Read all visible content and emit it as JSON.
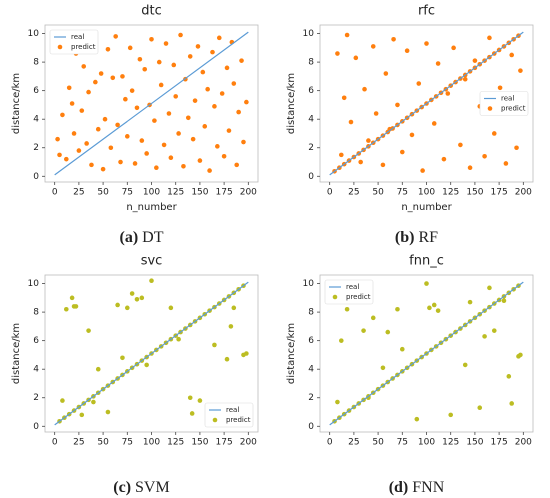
{
  "chart_data": [
    {
      "type": "scatter",
      "title": "dtc",
      "caption_label": "(a)",
      "caption": "DT",
      "xlabel": "n_number",
      "ylabel": "distance/km",
      "xlim": [
        -10,
        210
      ],
      "ylim": [
        -0.4,
        10.6
      ],
      "xticks": [
        0,
        25,
        50,
        75,
        100,
        125,
        150,
        175,
        200
      ],
      "yticks": [
        0,
        2,
        4,
        6,
        8,
        10
      ],
      "legend": "upper left",
      "series": [
        {
          "name": "real",
          "type": "line",
          "color": "#5b9bd5",
          "x": [
            0,
            200
          ],
          "y": [
            0.1,
            10.1
          ]
        },
        {
          "name": "predict",
          "type": "scatter",
          "color": "#ff7f0e",
          "x": [
            3,
            5,
            8,
            10,
            12,
            15,
            18,
            20,
            22,
            25,
            28,
            30,
            33,
            35,
            38,
            40,
            42,
            45,
            48,
            50,
            52,
            55,
            58,
            60,
            63,
            65,
            68,
            70,
            73,
            75,
            78,
            80,
            83,
            85,
            88,
            90,
            93,
            95,
            98,
            100,
            103,
            105,
            108,
            110,
            113,
            115,
            118,
            120,
            123,
            125,
            128,
            130,
            133,
            135,
            138,
            140,
            143,
            145,
            148,
            150,
            153,
            155,
            158,
            160,
            163,
            165,
            168,
            170,
            173,
            175,
            178,
            180,
            183,
            185,
            188,
            190,
            193,
            195,
            198
          ],
          "y": [
            2.6,
            1.5,
            4.3,
            9.5,
            1.2,
            6.2,
            5.1,
            3.0,
            8.6,
            1.8,
            4.6,
            7.7,
            2.3,
            5.9,
            0.8,
            9.2,
            6.6,
            3.3,
            7.2,
            0.5,
            4.0,
            8.9,
            2.0,
            6.9,
            9.8,
            3.6,
            1.0,
            7.0,
            5.4,
            2.8,
            9.0,
            6.0,
            0.9,
            4.8,
            8.2,
            2.5,
            7.5,
            1.6,
            5.0,
            9.6,
            3.9,
            0.6,
            8.0,
            6.4,
            2.2,
            9.3,
            4.4,
            1.3,
            7.8,
            5.6,
            3.0,
            9.9,
            0.7,
            6.8,
            4.1,
            8.4,
            2.6,
            5.3,
            9.1,
            1.1,
            7.3,
            3.5,
            6.1,
            0.4,
            8.7,
            4.9,
            2.1,
            9.7,
            5.8,
            1.4,
            7.6,
            3.2,
            9.4,
            6.5,
            0.8,
            4.5,
            8.1,
            2.4,
            5.2
          ]
        }
      ]
    },
    {
      "type": "scatter",
      "title": "rfc",
      "caption_label": "(b)",
      "caption": "RF",
      "xlabel": "n_number",
      "ylabel": "distance/km",
      "xlim": [
        -10,
        210
      ],
      "ylim": [
        -0.4,
        10.6
      ],
      "xticks": [
        0,
        25,
        50,
        75,
        100,
        125,
        150,
        175,
        200
      ],
      "yticks": [
        0,
        2,
        4,
        6,
        8,
        10
      ],
      "legend": "center right",
      "series": [
        {
          "name": "real",
          "type": "line",
          "color": "#5b9bd5",
          "x": [
            0,
            200
          ],
          "y": [
            0.1,
            10.1
          ]
        },
        {
          "name": "predict",
          "type": "scatter",
          "color": "#ff7f0e",
          "x": [
            5,
            10,
            15,
            20,
            25,
            30,
            35,
            40,
            45,
            50,
            55,
            60,
            65,
            70,
            75,
            80,
            85,
            90,
            95,
            100,
            105,
            110,
            115,
            120,
            125,
            130,
            135,
            140,
            145,
            150,
            155,
            160,
            165,
            170,
            175,
            180,
            185,
            190,
            195,
            8,
            12,
            15,
            18,
            22,
            27,
            32,
            36,
            40,
            45,
            48,
            55,
            58,
            62,
            66,
            70,
            75,
            80,
            85,
            92,
            96,
            100,
            108,
            112,
            118,
            122,
            128,
            135,
            140,
            145,
            150,
            155,
            160,
            165,
            170,
            176,
            182,
            188,
            193,
            197
          ],
          "y": [
            0.35,
            0.6,
            0.85,
            1.1,
            1.35,
            1.6,
            1.85,
            2.1,
            2.35,
            2.6,
            2.85,
            3.1,
            3.35,
            3.6,
            3.85,
            4.1,
            4.35,
            4.6,
            4.85,
            5.1,
            5.35,
            5.6,
            5.85,
            6.1,
            6.35,
            6.6,
            6.85,
            7.1,
            7.35,
            7.6,
            7.85,
            8.1,
            8.35,
            8.6,
            8.85,
            9.1,
            9.35,
            9.6,
            9.85,
            8.6,
            1.5,
            5.5,
            9.9,
            3.8,
            8.3,
            1.0,
            6.1,
            2.5,
            9.1,
            4.4,
            0.8,
            7.2,
            3.3,
            9.6,
            5.0,
            1.7,
            8.8,
            2.9,
            6.5,
            0.4,
            9.3,
            3.7,
            7.9,
            1.2,
            5.8,
            9.0,
            2.2,
            6.8,
            0.6,
            8.1,
            4.9,
            1.4,
            9.7,
            3.0,
            6.2,
            0.9,
            8.5,
            2.0,
            7.4
          ]
        }
      ]
    },
    {
      "type": "scatter",
      "title": "svc",
      "caption_label": "(c)",
      "caption": "SVM",
      "ylabel": "distance/km",
      "xlim": [
        -10,
        210
      ],
      "ylim": [
        -0.4,
        10.6
      ],
      "xticks": [
        0,
        25,
        50,
        75,
        100,
        125,
        150,
        175,
        200
      ],
      "yticks": [
        0,
        2,
        4,
        6,
        8,
        10
      ],
      "legend": "lower right",
      "series": [
        {
          "name": "real",
          "type": "line",
          "color": "#5b9bd5",
          "x": [
            0,
            200
          ],
          "y": [
            0.1,
            10.1
          ]
        },
        {
          "name": "predict",
          "type": "scatter",
          "color": "#bcbd22",
          "x": [
            5,
            10,
            15,
            20,
            25,
            30,
            35,
            40,
            45,
            50,
            55,
            60,
            65,
            70,
            75,
            80,
            85,
            90,
            95,
            100,
            105,
            110,
            115,
            120,
            125,
            130,
            135,
            140,
            145,
            150,
            155,
            160,
            165,
            170,
            175,
            180,
            185,
            190,
            195,
            18,
            20,
            22,
            12,
            8,
            35,
            40,
            45,
            55,
            65,
            70,
            75,
            80,
            85,
            90,
            100,
            95,
            120,
            128,
            140,
            142,
            150,
            160,
            165,
            178,
            182,
            185,
            195,
            198,
            28
          ],
          "y": [
            0.35,
            0.6,
            0.85,
            1.1,
            1.35,
            1.6,
            1.85,
            2.1,
            2.35,
            2.6,
            2.85,
            3.1,
            3.35,
            3.6,
            3.85,
            4.1,
            4.35,
            4.6,
            4.85,
            5.1,
            5.35,
            5.6,
            5.85,
            6.1,
            6.35,
            6.6,
            6.85,
            7.1,
            7.35,
            7.6,
            7.85,
            8.1,
            8.35,
            8.6,
            8.85,
            9.1,
            9.35,
            9.6,
            9.85,
            9.0,
            8.4,
            8.4,
            8.2,
            1.8,
            6.7,
            1.7,
            4.0,
            1.0,
            8.5,
            4.8,
            8.3,
            9.3,
            8.9,
            9.0,
            10.2,
            4.3,
            8.3,
            6.1,
            2.0,
            0.9,
            1.8,
            1.2,
            5.7,
            4.7,
            7.0,
            8.3,
            5.0,
            5.1,
            0.8
          ]
        }
      ]
    },
    {
      "type": "scatter",
      "title": "fnn_c",
      "caption_label": "(d)",
      "caption": "FNN",
      "ylabel": "distance/km",
      "xlim": [
        -10,
        210
      ],
      "ylim": [
        -0.4,
        10.6
      ],
      "xticks": [
        0,
        25,
        50,
        75,
        100,
        125,
        150,
        175,
        200
      ],
      "yticks": [
        0,
        2,
        4,
        6,
        8,
        10
      ],
      "legend": "upper left",
      "series": [
        {
          "name": "real",
          "type": "line",
          "color": "#5b9bd5",
          "x": [
            0,
            200
          ],
          "y": [
            0.1,
            10.1
          ]
        },
        {
          "name": "predict",
          "type": "scatter",
          "color": "#bcbd22",
          "x": [
            5,
            10,
            15,
            20,
            25,
            30,
            35,
            40,
            45,
            50,
            55,
            60,
            65,
            70,
            75,
            80,
            85,
            90,
            95,
            100,
            105,
            110,
            115,
            120,
            125,
            130,
            135,
            140,
            145,
            150,
            155,
            160,
            165,
            170,
            175,
            180,
            185,
            190,
            195,
            18,
            12,
            8,
            35,
            40,
            45,
            55,
            60,
            70,
            75,
            90,
            100,
            103,
            108,
            112,
            125,
            140,
            145,
            155,
            160,
            165,
            170,
            180,
            185,
            195,
            197,
            188
          ],
          "y": [
            0.35,
            0.6,
            0.85,
            1.1,
            1.35,
            1.6,
            1.85,
            2.1,
            2.35,
            2.6,
            2.85,
            3.1,
            3.35,
            3.6,
            3.85,
            4.1,
            4.35,
            4.6,
            4.85,
            5.1,
            5.35,
            5.6,
            5.85,
            6.1,
            6.35,
            6.6,
            6.85,
            7.1,
            7.35,
            7.6,
            7.85,
            8.1,
            8.35,
            8.6,
            8.85,
            9.1,
            9.35,
            9.6,
            9.85,
            8.2,
            6.0,
            1.7,
            6.7,
            2.0,
            7.6,
            4.1,
            6.6,
            8.2,
            5.4,
            0.5,
            10.0,
            8.3,
            8.5,
            8.1,
            0.8,
            4.3,
            8.7,
            1.3,
            6.3,
            9.7,
            6.7,
            8.8,
            3.5,
            4.9,
            5.0,
            1.6
          ]
        }
      ]
    }
  ]
}
